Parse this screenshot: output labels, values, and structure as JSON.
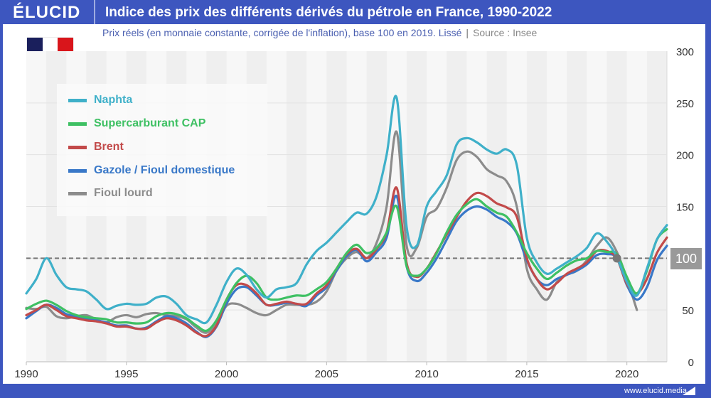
{
  "header": {
    "logo": "ÉLUCID",
    "title": "Indice des prix des différents dérivés du pétrole en France, 1990-2022",
    "subtitle": "Prix réels (en monnaie constante, corrigée de l'inflation), base 100 en 2019. Lissé",
    "separator": "|",
    "source": "Source : Insee"
  },
  "flag": {
    "country": "France",
    "colors": [
      "#1a1f5c",
      "#ffffff",
      "#d9151b"
    ]
  },
  "footer": {
    "url": "www.elucid.media"
  },
  "reference": {
    "value": 100,
    "label": "100",
    "marker_year": 2019.5
  },
  "chart_data": {
    "type": "line",
    "title": "Indice des prix des différents dérivés du pétrole en France, 1990-2022",
    "subtitle": "Prix réels (en monnaie constante, corrigée de l'inflation), base 100 en 2019. Lissé",
    "xlabel": "",
    "ylabel": "",
    "xlim": [
      1990,
      2022
    ],
    "ylim": [
      0,
      300
    ],
    "x_ticks": [
      "1990",
      "1995",
      "2000",
      "2005",
      "2010",
      "2015",
      "2020"
    ],
    "y_ticks": [
      "0",
      "50",
      "100",
      "150",
      "200",
      "250",
      "300"
    ],
    "y_axis_side": "right",
    "grid": true,
    "legend_position": "top-left",
    "reference_line": 100,
    "x": [
      1990,
      1990.5,
      1991,
      1991.5,
      1992,
      1992.5,
      1993,
      1993.5,
      1994,
      1994.5,
      1995,
      1995.5,
      1996,
      1996.5,
      1997,
      1997.5,
      1998,
      1998.5,
      1999,
      1999.5,
      2000,
      2000.5,
      2001,
      2001.5,
      2002,
      2002.5,
      2003,
      2003.5,
      2004,
      2004.5,
      2005,
      2005.5,
      2006,
      2006.5,
      2007,
      2007.5,
      2008,
      2008.5,
      2009,
      2009.5,
      2010,
      2010.5,
      2011,
      2011.5,
      2012,
      2012.5,
      2013,
      2013.5,
      2014,
      2014.5,
      2015,
      2015.5,
      2016,
      2016.5,
      2017,
      2017.5,
      2018,
      2018.5,
      2019,
      2019.5,
      2020,
      2020.5,
      2021,
      2021.5,
      2022
    ],
    "series": [
      {
        "name": "Naphta",
        "color": "#3fb0c9",
        "values": [
          66,
          80,
          100,
          84,
          72,
          70,
          68,
          60,
          51,
          54,
          56,
          55,
          56,
          62,
          63,
          56,
          45,
          41,
          38,
          55,
          77,
          90,
          84,
          70,
          62,
          70,
          72,
          76,
          94,
          107,
          115,
          125,
          135,
          144,
          143,
          160,
          200,
          255,
          130,
          112,
          150,
          165,
          180,
          210,
          216,
          212,
          205,
          201,
          205,
          190,
          120,
          96,
          85,
          90,
          96,
          102,
          110,
          124,
          116,
          101,
          77,
          64,
          90,
          118,
          132
        ]
      },
      {
        "name": "Supercarburant CAP",
        "color": "#3ec063",
        "values": [
          51,
          56,
          59,
          55,
          49,
          45,
          43,
          42,
          41,
          38,
          38,
          37,
          38,
          44,
          47,
          46,
          42,
          35,
          30,
          40,
          60,
          76,
          83,
          76,
          62,
          60,
          62,
          64,
          64,
          70,
          77,
          90,
          105,
          113,
          105,
          110,
          125,
          150,
          92,
          83,
          90,
          105,
          125,
          142,
          152,
          157,
          150,
          144,
          140,
          125,
          105,
          90,
          80,
          86,
          93,
          98,
          100,
          107,
          106,
          104,
          82,
          66,
          88,
          118,
          128
        ]
      },
      {
        "name": "Brent",
        "color": "#c24a4a",
        "values": [
          45,
          50,
          55,
          50,
          44,
          42,
          40,
          39,
          37,
          34,
          34,
          32,
          32,
          38,
          42,
          40,
          35,
          28,
          25,
          35,
          60,
          74,
          74,
          66,
          55,
          56,
          58,
          56,
          56,
          66,
          74,
          90,
          104,
          109,
          100,
          109,
          125,
          168,
          95,
          82,
          90,
          106,
          123,
          140,
          155,
          163,
          160,
          153,
          149,
          140,
          100,
          80,
          70,
          76,
          85,
          90,
          96,
          107,
          107,
          100,
          75,
          66,
          80,
          105,
          120
        ]
      },
      {
        "name": "Gazole / Fioul domestique",
        "color": "#3978c8",
        "values": [
          42,
          49,
          55,
          52,
          46,
          44,
          42,
          40,
          38,
          35,
          35,
          32,
          33,
          39,
          44,
          42,
          37,
          29,
          24,
          34,
          56,
          70,
          72,
          64,
          55,
          55,
          57,
          56,
          54,
          64,
          72,
          88,
          102,
          108,
          97,
          106,
          120,
          160,
          92,
          78,
          86,
          100,
          118,
          136,
          146,
          150,
          147,
          140,
          135,
          124,
          98,
          80,
          74,
          80,
          84,
          88,
          94,
          103,
          104,
          100,
          74,
          60,
          72,
          98,
          112
        ]
      },
      {
        "name": "Fioul lourd",
        "color": "#8c8c8c",
        "values": [
          52,
          51,
          53,
          44,
          42,
          44,
          45,
          41,
          38,
          43,
          45,
          43,
          46,
          47,
          45,
          44,
          41,
          33,
          28,
          37,
          54,
          56,
          52,
          47,
          45,
          50,
          55,
          55,
          55,
          58,
          68,
          88,
          100,
          106,
          100,
          115,
          150,
          222,
          112,
          110,
          140,
          148,
          168,
          195,
          203,
          198,
          186,
          180,
          174,
          150,
          90,
          70,
          60,
          77,
          84,
          88,
          98,
          112,
          120,
          106,
          80,
          50,
          null,
          null,
          null
        ]
      }
    ]
  }
}
